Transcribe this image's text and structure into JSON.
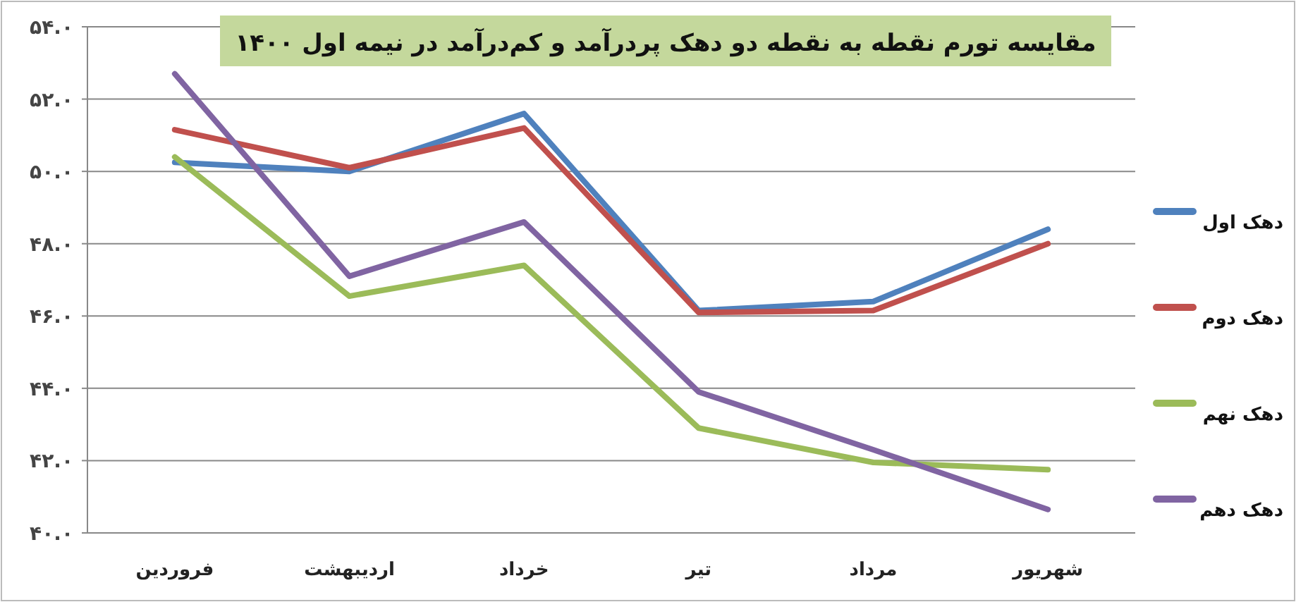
{
  "chart_data": {
    "type": "line",
    "title": "مقایسه تورم نقطه به نقطه دو دهک پردرآمد و کم‌درآمد در نیمه اول ۱۴۰۰",
    "categories": [
      "فروردین",
      "اردیبهشت",
      "خرداد",
      "تیر",
      "مرداد",
      "شهریور"
    ],
    "series": [
      {
        "name": "دهک اول",
        "color": "#4f81bd",
        "values": [
          50.25,
          50.0,
          51.6,
          46.15,
          46.4,
          48.4
        ]
      },
      {
        "name": "دهک دوم",
        "color": "#c0504d",
        "values": [
          51.15,
          50.1,
          51.2,
          46.1,
          46.15,
          48.0
        ]
      },
      {
        "name": "دهک نهم",
        "color": "#9bbb59",
        "values": [
          50.4,
          46.55,
          47.4,
          42.9,
          41.95,
          41.75
        ]
      },
      {
        "name": "دهک دهم",
        "color": "#8064a2",
        "values": [
          52.7,
          47.1,
          48.6,
          43.9,
          42.3,
          40.65
        ]
      }
    ],
    "ylim": [
      40,
      54
    ],
    "yticks": [
      {
        "value": 40,
        "label": "۴۰.۰"
      },
      {
        "value": 42,
        "label": "۴۲.۰"
      },
      {
        "value": 44,
        "label": "۴۴.۰"
      },
      {
        "value": 46,
        "label": "۴۶.۰"
      },
      {
        "value": 48,
        "label": "۴۸.۰"
      },
      {
        "value": 50,
        "label": "۵۰.۰"
      },
      {
        "value": 52,
        "label": "۵۲.۰"
      },
      {
        "value": 54,
        "label": "۵۴.۰"
      }
    ],
    "grid": "y",
    "legend": "right",
    "marker": "none",
    "line_style": "solid"
  }
}
